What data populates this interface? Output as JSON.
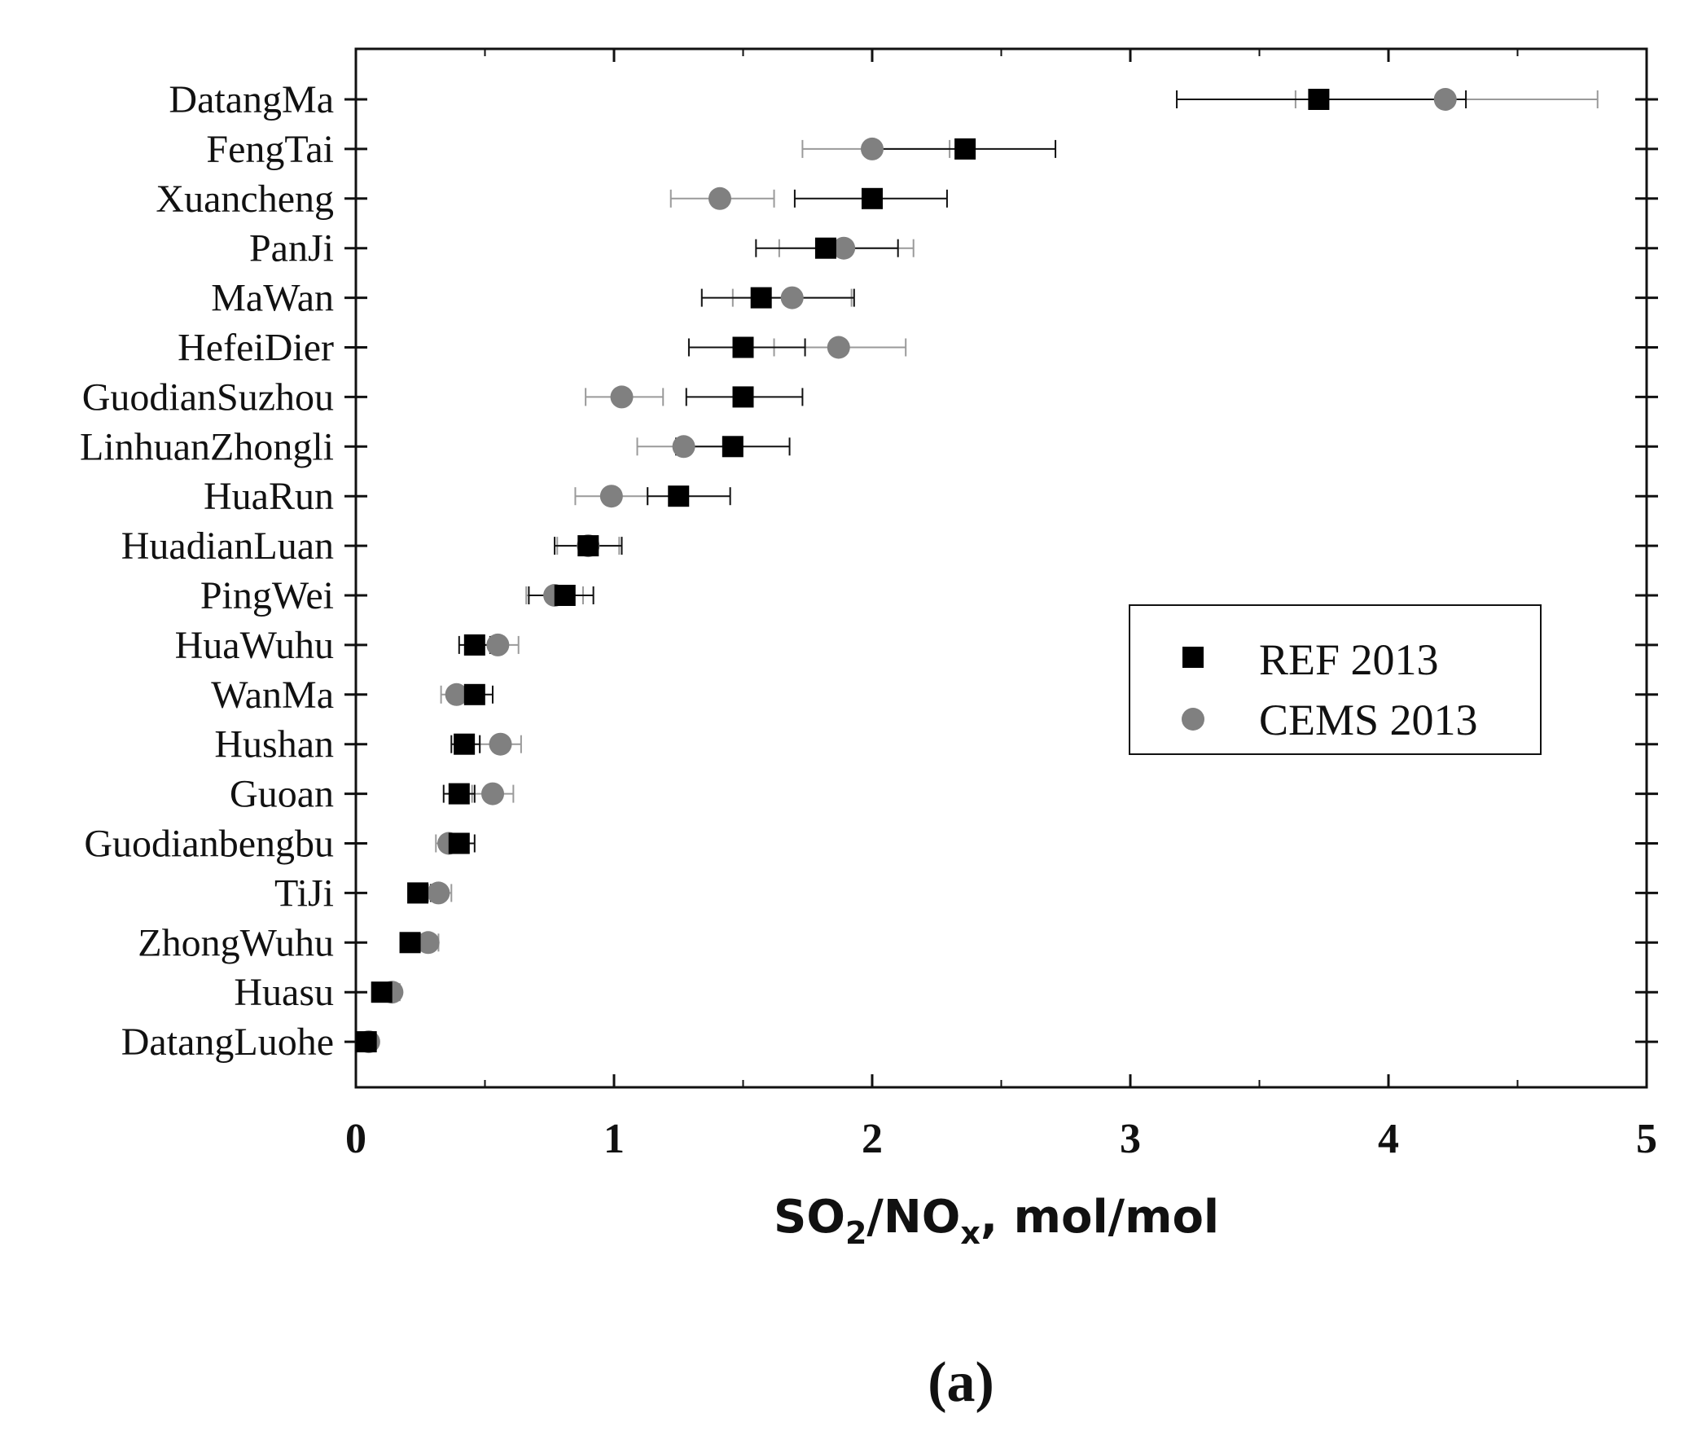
{
  "chart_data": {
    "type": "scatter",
    "panel_label": "(a)",
    "xlabel": {
      "main": "SO",
      "sub1": "2",
      "mid": "/NO",
      "sub2": "x",
      "tail": ", mol/mol"
    },
    "xlim": [
      0,
      5
    ],
    "x_ticks": [
      0,
      1,
      2,
      3,
      4,
      5
    ],
    "x_tick_labels": [
      "0",
      "1",
      "2",
      "3",
      "4",
      "5"
    ],
    "categories": [
      "DatangMa",
      "FengTai",
      "Xuancheng",
      "PanJi",
      "MaWan",
      "HefeiDier",
      "GuodianSuzhou",
      "LinhuanZhongli",
      "HuaRun",
      "HuadianLuan",
      "PingWei",
      "HuaWuhu",
      "WanMa",
      "Hushan",
      "Guoan",
      "Guodianbengbu",
      "TiJi",
      "ZhongWuhu",
      "Huasu",
      "DatangLuohe"
    ],
    "series": [
      {
        "name": "REF 2013",
        "marker": "square",
        "color": "#000000",
        "values": [
          3.73,
          2.36,
          2.0,
          1.82,
          1.57,
          1.5,
          1.5,
          1.46,
          1.25,
          0.9,
          0.81,
          0.46,
          0.46,
          0.42,
          0.4,
          0.4,
          0.24,
          0.21,
          0.1,
          0.04
        ],
        "err_low": [
          3.18,
          2.0,
          1.7,
          1.55,
          1.34,
          1.29,
          1.28,
          1.24,
          1.13,
          0.77,
          0.67,
          0.4,
          0.39,
          0.37,
          0.34,
          0.34,
          0.21,
          0.18,
          0.08,
          0.02
        ],
        "err_high": [
          4.3,
          2.71,
          2.29,
          2.1,
          1.93,
          1.74,
          1.73,
          1.68,
          1.45,
          1.03,
          0.92,
          0.52,
          0.53,
          0.48,
          0.46,
          0.46,
          0.29,
          0.25,
          0.13,
          0.07
        ]
      },
      {
        "name": "CEMS 2013",
        "marker": "circle",
        "color": "#808080",
        "values": [
          4.22,
          2.0,
          1.41,
          1.89,
          1.69,
          1.87,
          1.03,
          1.27,
          0.99,
          0.9,
          0.77,
          0.55,
          0.39,
          0.56,
          0.53,
          0.36,
          0.32,
          0.28,
          0.14,
          0.05
        ],
        "err_low": [
          3.64,
          1.73,
          1.22,
          1.64,
          1.46,
          1.62,
          0.89,
          1.09,
          0.85,
          0.78,
          0.66,
          0.47,
          0.33,
          0.48,
          0.45,
          0.31,
          0.28,
          0.24,
          0.12,
          0.03
        ],
        "err_high": [
          4.81,
          2.3,
          1.62,
          2.16,
          1.92,
          2.13,
          1.19,
          1.46,
          1.13,
          1.02,
          0.88,
          0.63,
          0.45,
          0.64,
          0.61,
          0.41,
          0.37,
          0.32,
          0.17,
          0.07
        ]
      }
    ],
    "legend": {
      "position": "center-right",
      "entries": [
        "REF 2013",
        "CEMS 2013"
      ]
    }
  }
}
